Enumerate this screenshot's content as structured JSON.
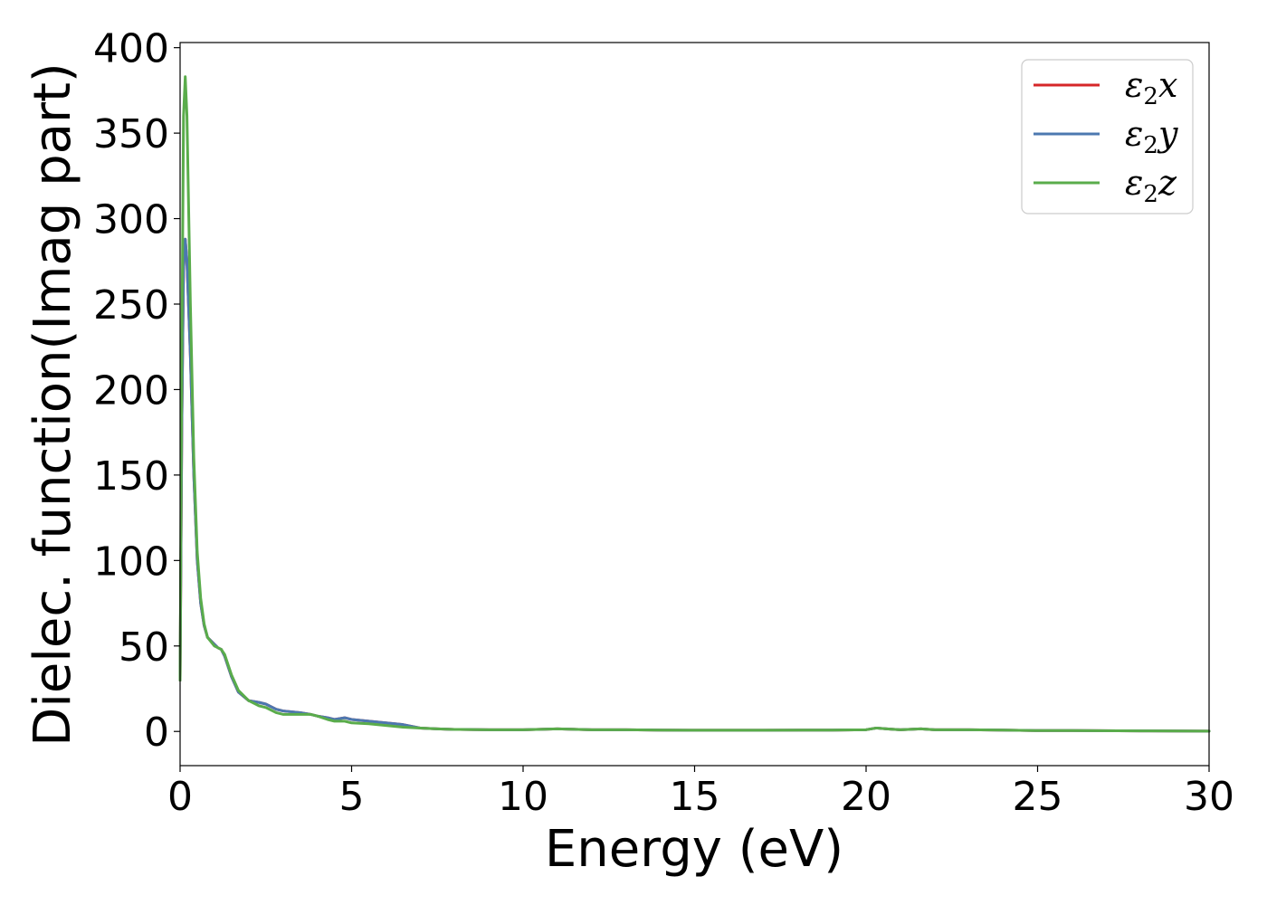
{
  "chart_data": {
    "type": "line",
    "title": "",
    "xlabel": "Energy (eV)",
    "ylabel": "Dielec. function(Imag part)",
    "xlim": [
      0,
      30
    ],
    "ylim": [
      -20,
      403
    ],
    "xticks": [
      0,
      5,
      10,
      15,
      20,
      25,
      30
    ],
    "yticks": [
      0,
      50,
      100,
      150,
      200,
      250,
      300,
      350,
      400
    ],
    "grid": false,
    "legend": "top-right",
    "series": [
      {
        "name": "x",
        "color": "#d62728",
        "x": [
          0,
          0.05,
          0.1,
          0.15,
          0.2,
          0.3,
          0.4,
          0.5,
          0.6,
          0.7,
          0.8,
          1.0,
          1.1,
          1.2,
          1.3,
          1.5,
          1.7,
          2.0,
          2.3,
          2.5,
          2.8,
          3.0,
          3.5,
          3.8,
          4.0,
          4.3,
          4.5,
          4.8,
          5.0,
          5.5,
          6.0,
          6.5,
          7.0,
          7.5,
          8.0,
          9.0,
          10.0,
          11.0,
          12.0,
          13.0,
          14.0,
          15.0,
          17.0,
          19.0,
          20.0,
          20.3,
          20.6,
          21.0,
          21.6,
          22.0,
          23.0,
          24.0,
          25.0,
          26.0,
          28.0,
          30.0
        ],
        "y": [
          30,
          180,
          270,
          288,
          275,
          220,
          150,
          100,
          75,
          62,
          55,
          51,
          49,
          48,
          44,
          32,
          23,
          18,
          17,
          16,
          13,
          12,
          11,
          10,
          9,
          8,
          7,
          8,
          7,
          6,
          5,
          4,
          2,
          1.5,
          1.2,
          1.0,
          1.0,
          1.5,
          1.0,
          1.0,
          0.8,
          0.7,
          0.7,
          0.8,
          1.0,
          2.0,
          1.5,
          1.0,
          1.5,
          1.0,
          1.0,
          0.8,
          0.5,
          0.5,
          0.3,
          0.2
        ]
      },
      {
        "name": "y",
        "color": "#4c78b0",
        "x": [
          0,
          0.05,
          0.1,
          0.15,
          0.2,
          0.3,
          0.4,
          0.5,
          0.6,
          0.7,
          0.8,
          1.0,
          1.1,
          1.2,
          1.3,
          1.5,
          1.7,
          2.0,
          2.3,
          2.5,
          2.8,
          3.0,
          3.5,
          3.8,
          4.0,
          4.3,
          4.5,
          4.8,
          5.0,
          5.5,
          6.0,
          6.5,
          7.0,
          7.5,
          8.0,
          9.0,
          10.0,
          11.0,
          12.0,
          13.0,
          14.0,
          15.0,
          17.0,
          19.0,
          20.0,
          20.3,
          20.6,
          21.0,
          21.6,
          22.0,
          23.0,
          24.0,
          25.0,
          26.0,
          28.0,
          30.0
        ],
        "y": [
          30,
          180,
          270,
          288,
          275,
          220,
          150,
          100,
          75,
          62,
          55,
          51,
          49,
          48,
          44,
          32,
          23,
          18,
          17,
          16,
          13,
          12,
          11,
          10,
          9,
          8,
          7,
          8,
          7,
          6,
          5,
          4,
          2,
          1.5,
          1.2,
          1.0,
          1.0,
          1.5,
          1.0,
          1.0,
          0.8,
          0.7,
          0.7,
          0.8,
          1.0,
          2.0,
          1.5,
          1.0,
          1.5,
          1.0,
          1.0,
          0.8,
          0.5,
          0.5,
          0.3,
          0.2
        ]
      },
      {
        "name": "z",
        "color": "#5aac4b",
        "x": [
          0,
          0.05,
          0.1,
          0.15,
          0.2,
          0.3,
          0.4,
          0.5,
          0.6,
          0.7,
          0.8,
          1.0,
          1.1,
          1.2,
          1.3,
          1.5,
          1.7,
          2.0,
          2.3,
          2.5,
          2.8,
          3.0,
          3.5,
          3.8,
          4.0,
          4.3,
          4.5,
          4.8,
          5.0,
          5.5,
          6.0,
          6.5,
          7.0,
          7.5,
          8.0,
          9.0,
          10.0,
          11.0,
          12.0,
          13.0,
          14.0,
          15.0,
          17.0,
          19.0,
          20.0,
          20.3,
          20.6,
          21.0,
          21.6,
          22.0,
          23.0,
          24.0,
          25.0,
          26.0,
          28.0,
          30.0
        ],
        "y": [
          30,
          220,
          360,
          383,
          360,
          250,
          160,
          105,
          78,
          63,
          55,
          50,
          49,
          48,
          45,
          33,
          24,
          18,
          15,
          14,
          11,
          10,
          10,
          10,
          9,
          7,
          6,
          6,
          5,
          4.5,
          3.5,
          2.5,
          2,
          1.5,
          1.2,
          1.0,
          1.0,
          1.5,
          1.0,
          1.0,
          0.8,
          0.7,
          0.7,
          0.8,
          1.0,
          2.0,
          1.5,
          1.0,
          1.5,
          1.0,
          1.0,
          0.8,
          0.5,
          0.5,
          0.3,
          0.2
        ]
      }
    ]
  },
  "legend_labels": [
    {
      "prefix": "ε",
      "sub": "2",
      "suffix": "x"
    },
    {
      "prefix": "ε",
      "sub": "2",
      "suffix": "y"
    },
    {
      "prefix": "ε",
      "sub": "2",
      "suffix": "z"
    }
  ]
}
